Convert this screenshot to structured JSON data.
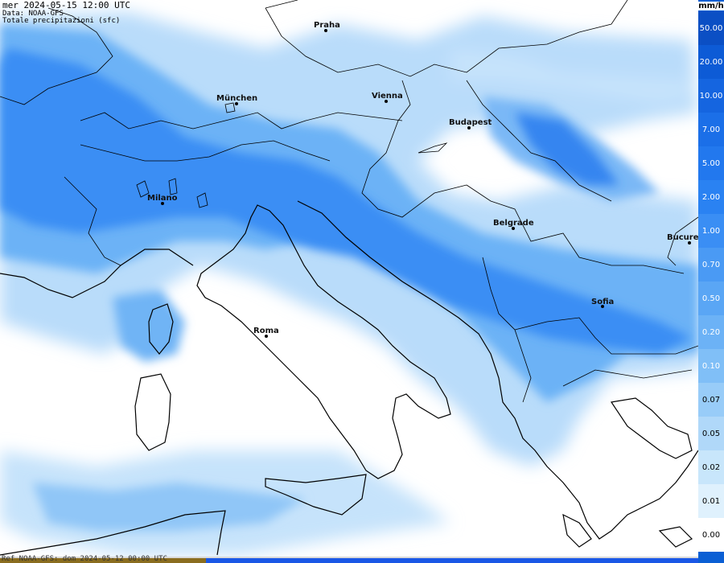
{
  "header": {
    "title": "mer 2024-05-15 12:00 UTC",
    "source": "Data: NOAA-GFS",
    "variable": "Totale precipitazioni (sfc)"
  },
  "cities": [
    {
      "id": "praha",
      "name": "Praha"
    },
    {
      "id": "munchen",
      "name": "München"
    },
    {
      "id": "vienna",
      "name": "Vienna"
    },
    {
      "id": "budapest",
      "name": "Budapest"
    },
    {
      "id": "milano",
      "name": "Milano"
    },
    {
      "id": "belgrade",
      "name": "Belgrade"
    },
    {
      "id": "bucuresti",
      "name": "Bucure"
    },
    {
      "id": "sofia",
      "name": "Sofia"
    },
    {
      "id": "roma",
      "name": "Roma"
    }
  ],
  "legend": {
    "unit": "mm/h",
    "levels": [
      "50.00",
      "20.00",
      "10.00",
      "7.00",
      "5.00",
      "2.00",
      "1.00",
      "0.70",
      "0.50",
      "0.20",
      "0.10",
      "0.07",
      "0.05",
      "0.02",
      "0.01",
      "0.00"
    ],
    "colors": [
      "#0b4fc4",
      "#0d5bd6",
      "#1565e0",
      "#1b6fe8",
      "#2278ee",
      "#2a82f2",
      "#3a8ef4",
      "#4a9af4",
      "#5aa6f5",
      "#6cb2f6",
      "#80bff7",
      "#98ccf8",
      "#b0d8f9",
      "#c8e6fb",
      "#dff1fd",
      "#ffffff"
    ]
  },
  "footer": {
    "text": "Ref NOAA-GFS: dom 2024-05-12 00:00 UTC"
  }
}
